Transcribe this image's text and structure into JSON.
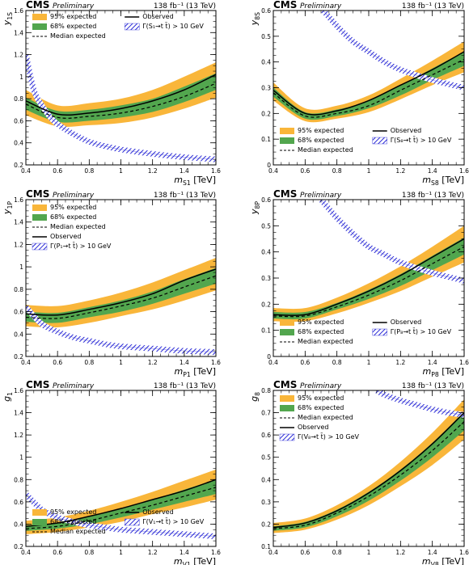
{
  "chart_data": [
    {
      "type": "area",
      "header": {
        "experiment": "CMS",
        "status": "Preliminary",
        "lumi": "138 fb⁻¹ (13 TeV)"
      },
      "ylabel": "y_1S",
      "xlabel": "m_S1 [TeV]",
      "xlim": [
        0.4,
        1.6
      ],
      "ylim": [
        0.2,
        1.6
      ],
      "xticks": [
        "0.4",
        "0.6",
        "0.8",
        "1",
        "1.2",
        "1.4",
        "1.6"
      ],
      "yticks": [
        "0.2",
        "0.4",
        "0.6",
        "0.8",
        "1",
        "1.2",
        "1.4",
        "1.6"
      ],
      "legend": {
        "band95": "95% expected",
        "band68": "68% expected",
        "median": "Median expected",
        "observed": "Observed",
        "width": "Γ(S₁→t t̄) > 10 GeV"
      },
      "series": [
        {
          "name": "Observed",
          "x": [
            0.4,
            0.6,
            0.8,
            1.0,
            1.2,
            1.4,
            1.6
          ],
          "values": [
            0.78,
            0.66,
            0.67,
            0.71,
            0.78,
            0.88,
            1.02
          ]
        },
        {
          "name": "Median expected",
          "x": [
            0.4,
            0.6,
            0.8,
            1.0,
            1.2,
            1.4,
            1.6
          ],
          "values": [
            0.75,
            0.63,
            0.64,
            0.67,
            0.73,
            0.82,
            0.94
          ]
        },
        {
          "name": "68% expected",
          "x": [
            0.4,
            0.6,
            0.8,
            1.0,
            1.2,
            1.4,
            1.6
          ],
          "low": [
            0.7,
            0.59,
            0.6,
            0.63,
            0.68,
            0.77,
            0.88
          ],
          "high": [
            0.81,
            0.69,
            0.7,
            0.74,
            0.8,
            0.91,
            1.03
          ]
        },
        {
          "name": "95% expected",
          "x": [
            0.4,
            0.6,
            0.8,
            1.0,
            1.2,
            1.4,
            1.6
          ],
          "low": [
            0.65,
            0.55,
            0.56,
            0.58,
            0.63,
            0.71,
            0.81
          ],
          "high": [
            0.88,
            0.74,
            0.76,
            0.8,
            0.88,
            1.0,
            1.13
          ]
        },
        {
          "name": "Γ(S₁→t t̄) > 10 GeV",
          "x": [
            0.4,
            0.45,
            0.5,
            0.55,
            0.6,
            0.7,
            0.8,
            0.9,
            1.0,
            1.2,
            1.4,
            1.6
          ],
          "values": [
            1.2,
            0.88,
            0.74,
            0.64,
            0.57,
            0.48,
            0.41,
            0.37,
            0.34,
            0.3,
            0.27,
            0.25
          ]
        }
      ]
    },
    {
      "type": "area",
      "header": {
        "experiment": "CMS",
        "status": "Preliminary",
        "lumi": "138 fb⁻¹ (13 TeV)"
      },
      "ylabel": "y_8S",
      "xlabel": "m_S8 [TeV]",
      "xlim": [
        0.4,
        1.6
      ],
      "ylim": [
        0.0,
        0.6
      ],
      "xticks": [
        "0.4",
        "0.6",
        "0.8",
        "1",
        "1.2",
        "1.4",
        "1.6"
      ],
      "yticks": [
        "0",
        "0.1",
        "0.2",
        "0.3",
        "0.4",
        "0.5",
        "0.6"
      ],
      "legend": {
        "band95": "95% expected",
        "band68": "68% expected",
        "median": "Median expected",
        "observed": "Observed",
        "width": "Γ(S₈→t t̄) > 10 GeV"
      },
      "series": [
        {
          "name": "Observed",
          "x": [
            0.4,
            0.6,
            0.8,
            1.0,
            1.2,
            1.4,
            1.6
          ],
          "values": [
            0.29,
            0.2,
            0.21,
            0.25,
            0.31,
            0.37,
            0.44
          ]
        },
        {
          "name": "Median expected",
          "x": [
            0.4,
            0.6,
            0.8,
            1.0,
            1.2,
            1.4,
            1.6
          ],
          "values": [
            0.28,
            0.19,
            0.2,
            0.23,
            0.29,
            0.35,
            0.41
          ]
        },
        {
          "name": "68% expected",
          "x": [
            0.4,
            0.6,
            0.8,
            1.0,
            1.2,
            1.4,
            1.6
          ],
          "low": [
            0.265,
            0.18,
            0.19,
            0.22,
            0.27,
            0.33,
            0.385
          ]
        },
        {
          "name": "68% expected high",
          "x": [
            0.4,
            0.6,
            0.8,
            1.0,
            1.2,
            1.4,
            1.6
          ],
          "values": [
            0.3,
            0.205,
            0.215,
            0.25,
            0.31,
            0.375,
            0.44
          ]
        },
        {
          "name": "95% expected",
          "x": [
            0.4,
            0.6,
            0.8,
            1.0,
            1.2,
            1.4,
            1.6
          ],
          "low": [
            0.25,
            0.17,
            0.18,
            0.205,
            0.255,
            0.31,
            0.36
          ],
          "high": [
            0.32,
            0.22,
            0.23,
            0.27,
            0.335,
            0.405,
            0.48
          ]
        },
        {
          "name": "Γ(S₈→t t̄) > 10 GeV",
          "x": [
            0.7,
            0.8,
            0.9,
            1.0,
            1.1,
            1.2,
            1.4,
            1.6
          ],
          "values": [
            0.61,
            0.54,
            0.48,
            0.44,
            0.4,
            0.37,
            0.33,
            0.3
          ]
        }
      ]
    },
    {
      "type": "area",
      "header": {
        "experiment": "CMS",
        "status": "Preliminary",
        "lumi": "138 fb⁻¹ (13 TeV)"
      },
      "ylabel": "y_1P",
      "xlabel": "m_P1 [TeV]",
      "xlim": [
        0.4,
        1.6
      ],
      "ylim": [
        0.2,
        1.6
      ],
      "xticks": [
        "0.4",
        "0.6",
        "0.8",
        "1",
        "1.2",
        "1.4",
        "1.6"
      ],
      "yticks": [
        "0.2",
        "0.4",
        "0.6",
        "0.8",
        "1",
        "1.2",
        "1.4",
        "1.6"
      ],
      "legend": {
        "band95": "95% expected",
        "band68": "68% expected",
        "median": "Median expected",
        "observed": "Observed",
        "width": "Γ(P₁→t t̄) > 10 GeV"
      },
      "series": [
        {
          "name": "Observed",
          "x": [
            0.4,
            0.6,
            0.8,
            1.0,
            1.2,
            1.4,
            1.6
          ],
          "values": [
            0.58,
            0.57,
            0.62,
            0.68,
            0.76,
            0.88,
            0.98
          ]
        },
        {
          "name": "Median expected",
          "x": [
            0.4,
            0.6,
            0.8,
            1.0,
            1.2,
            1.4,
            1.6
          ],
          "values": [
            0.55,
            0.54,
            0.59,
            0.65,
            0.72,
            0.82,
            0.92
          ]
        },
        {
          "name": "68% expected",
          "x": [
            0.4,
            0.6,
            0.8,
            1.0,
            1.2,
            1.4,
            1.6
          ],
          "low": [
            0.51,
            0.5,
            0.55,
            0.6,
            0.67,
            0.76,
            0.85
          ],
          "high": [
            0.6,
            0.59,
            0.64,
            0.7,
            0.78,
            0.89,
            0.99
          ]
        },
        {
          "name": "95% expected",
          "x": [
            0.4,
            0.6,
            0.8,
            1.0,
            1.2,
            1.4,
            1.6
          ],
          "low": [
            0.47,
            0.46,
            0.5,
            0.56,
            0.62,
            0.7,
            0.79
          ],
          "high": [
            0.66,
            0.65,
            0.7,
            0.77,
            0.86,
            0.97,
            1.08
          ]
        },
        {
          "name": "Γ(P₁→t t̄) > 10 GeV",
          "x": [
            0.4,
            0.5,
            0.6,
            0.7,
            0.8,
            0.9,
            1.0,
            1.2,
            1.4,
            1.6
          ],
          "values": [
            0.64,
            0.49,
            0.42,
            0.37,
            0.34,
            0.31,
            0.29,
            0.27,
            0.25,
            0.24
          ]
        }
      ]
    },
    {
      "type": "area",
      "header": {
        "experiment": "CMS",
        "status": "Preliminary",
        "lumi": "138 fb⁻¹ (13 TeV)"
      },
      "ylabel": "y_8P",
      "xlabel": "m_P8 [TeV]",
      "xlim": [
        0.4,
        1.6
      ],
      "ylim": [
        0.0,
        0.6
      ],
      "xticks": [
        "0.4",
        "0.6",
        "0.8",
        "1",
        "1.2",
        "1.4",
        "1.6"
      ],
      "yticks": [
        "0",
        "0.1",
        "0.2",
        "0.3",
        "0.4",
        "0.5",
        "0.6"
      ],
      "legend": {
        "band95": "95% expected",
        "band68": "68% expected",
        "median": "Median expected",
        "observed": "Observed",
        "width": "Γ(P₈→t t̄) > 10 GeV"
      },
      "series": [
        {
          "name": "Observed",
          "x": [
            0.4,
            0.6,
            0.8,
            1.0,
            1.2,
            1.4,
            1.6
          ],
          "values": [
            0.16,
            0.16,
            0.2,
            0.25,
            0.31,
            0.38,
            0.45
          ]
        },
        {
          "name": "Median expected",
          "x": [
            0.4,
            0.6,
            0.8,
            1.0,
            1.2,
            1.4,
            1.6
          ],
          "values": [
            0.155,
            0.155,
            0.19,
            0.235,
            0.29,
            0.355,
            0.42
          ]
        },
        {
          "name": "68% expected",
          "x": [
            0.4,
            0.6,
            0.8,
            1.0,
            1.2,
            1.4,
            1.6
          ],
          "low": [
            0.145,
            0.145,
            0.18,
            0.22,
            0.27,
            0.33,
            0.39
          ],
          "high": [
            0.17,
            0.17,
            0.205,
            0.255,
            0.315,
            0.385,
            0.455
          ]
        },
        {
          "name": "95% expected",
          "x": [
            0.4,
            0.6,
            0.8,
            1.0,
            1.2,
            1.4,
            1.6
          ],
          "low": [
            0.135,
            0.135,
            0.165,
            0.205,
            0.25,
            0.305,
            0.36
          ],
          "high": [
            0.185,
            0.185,
            0.225,
            0.28,
            0.345,
            0.42,
            0.5
          ]
        },
        {
          "name": "Γ(P₈→t t̄) > 10 GeV",
          "x": [
            0.7,
            0.8,
            0.9,
            1.0,
            1.1,
            1.2,
            1.4,
            1.6
          ],
          "values": [
            0.6,
            0.53,
            0.47,
            0.42,
            0.39,
            0.36,
            0.32,
            0.29
          ]
        }
      ]
    },
    {
      "type": "area",
      "header": {
        "experiment": "CMS",
        "status": "Preliminary",
        "lumi": "138 fb⁻¹ (13 TeV)"
      },
      "ylabel": "g_1",
      "xlabel": "m_V1 [TeV]",
      "xlim": [
        0.4,
        1.6
      ],
      "ylim": [
        0.2,
        1.6
      ],
      "xticks": [
        "0.4",
        "0.6",
        "0.8",
        "1",
        "1.2",
        "1.4",
        "1.6"
      ],
      "yticks": [
        "0.2",
        "0.4",
        "0.6",
        "0.8",
        "1",
        "1.2",
        "1.4",
        "1.6"
      ],
      "legend": {
        "band95": "95% expected",
        "band68": "68% expected",
        "median": "Median expected",
        "observed": "Observed",
        "width": "Γ(V₁→t t̄) > 10 GeV"
      },
      "series": [
        {
          "name": "Observed",
          "x": [
            0.4,
            0.6,
            0.8,
            1.0,
            1.2,
            1.4,
            1.6
          ],
          "values": [
            0.38,
            0.41,
            0.47,
            0.54,
            0.62,
            0.7,
            0.8
          ]
        },
        {
          "name": "Median expected",
          "x": [
            0.4,
            0.6,
            0.8,
            1.0,
            1.2,
            1.4,
            1.6
          ],
          "values": [
            0.36,
            0.38,
            0.43,
            0.5,
            0.57,
            0.65,
            0.73
          ]
        },
        {
          "name": "68% expected",
          "x": [
            0.4,
            0.6,
            0.8,
            1.0,
            1.2,
            1.4,
            1.6
          ],
          "low": [
            0.34,
            0.36,
            0.4,
            0.46,
            0.53,
            0.6,
            0.67
          ],
          "high": [
            0.39,
            0.41,
            0.47,
            0.54,
            0.62,
            0.71,
            0.8
          ]
        },
        {
          "name": "95% expected",
          "x": [
            0.4,
            0.6,
            0.8,
            1.0,
            1.2,
            1.4,
            1.6
          ],
          "low": [
            0.31,
            0.33,
            0.37,
            0.42,
            0.49,
            0.55,
            0.62
          ],
          "high": [
            0.43,
            0.46,
            0.52,
            0.6,
            0.69,
            0.79,
            0.89
          ]
        },
        {
          "name": "Γ(V₁→t t̄) > 10 GeV",
          "x": [
            0.4,
            0.5,
            0.6,
            0.7,
            0.8,
            0.9,
            1.0,
            1.2,
            1.4,
            1.6
          ],
          "values": [
            0.67,
            0.53,
            0.46,
            0.42,
            0.39,
            0.37,
            0.35,
            0.33,
            0.31,
            0.29
          ]
        }
      ]
    },
    {
      "type": "area",
      "header": {
        "experiment": "CMS",
        "status": "Preliminary",
        "lumi": "138 fb⁻¹ (13 TeV)"
      },
      "ylabel": "g_8",
      "xlabel": "m_V8 [TeV]",
      "xlim": [
        0.4,
        1.6
      ],
      "ylim": [
        0.1,
        0.8
      ],
      "xticks": [
        "0.4",
        "0.6",
        "0.8",
        "1",
        "1.2",
        "1.4",
        "1.6"
      ],
      "yticks": [
        "0.1",
        "0.2",
        "0.3",
        "0.4",
        "0.5",
        "0.6",
        "0.7",
        "0.8"
      ],
      "legend": {
        "band95": "95% expected",
        "band68": "68% expected",
        "median": "Median expected",
        "observed": "Observed",
        "width": "Γ(V₈→t t̄) > 10 GeV"
      },
      "series": [
        {
          "name": "Observed",
          "x": [
            0.4,
            0.6,
            0.8,
            1.0,
            1.2,
            1.4,
            1.6
          ],
          "values": [
            0.185,
            0.205,
            0.26,
            0.34,
            0.44,
            0.56,
            0.7
          ]
        },
        {
          "name": "Median expected",
          "x": [
            0.4,
            0.6,
            0.8,
            1.0,
            1.2,
            1.4,
            1.6
          ],
          "values": [
            0.18,
            0.195,
            0.25,
            0.325,
            0.42,
            0.53,
            0.66
          ]
        },
        {
          "name": "68% expected",
          "x": [
            0.4,
            0.6,
            0.8,
            1.0,
            1.2,
            1.4,
            1.6
          ],
          "low": [
            0.17,
            0.185,
            0.235,
            0.305,
            0.395,
            0.5,
            0.62
          ],
          "high": [
            0.19,
            0.21,
            0.265,
            0.345,
            0.445,
            0.565,
            0.705
          ]
        },
        {
          "name": "95% expected",
          "x": [
            0.4,
            0.6,
            0.8,
            1.0,
            1.2,
            1.4,
            1.6
          ],
          "low": [
            0.16,
            0.175,
            0.22,
            0.285,
            0.37,
            0.465,
            0.58
          ],
          "high": [
            0.205,
            0.225,
            0.285,
            0.37,
            0.48,
            0.61,
            0.76
          ]
        },
        {
          "name": "Γ(V₈→t t̄) > 10 GeV",
          "x": [
            1.05,
            1.1,
            1.2,
            1.3,
            1.4,
            1.5,
            1.6
          ],
          "values": [
            0.8,
            0.78,
            0.755,
            0.735,
            0.715,
            0.7,
            0.69
          ]
        }
      ]
    }
  ]
}
